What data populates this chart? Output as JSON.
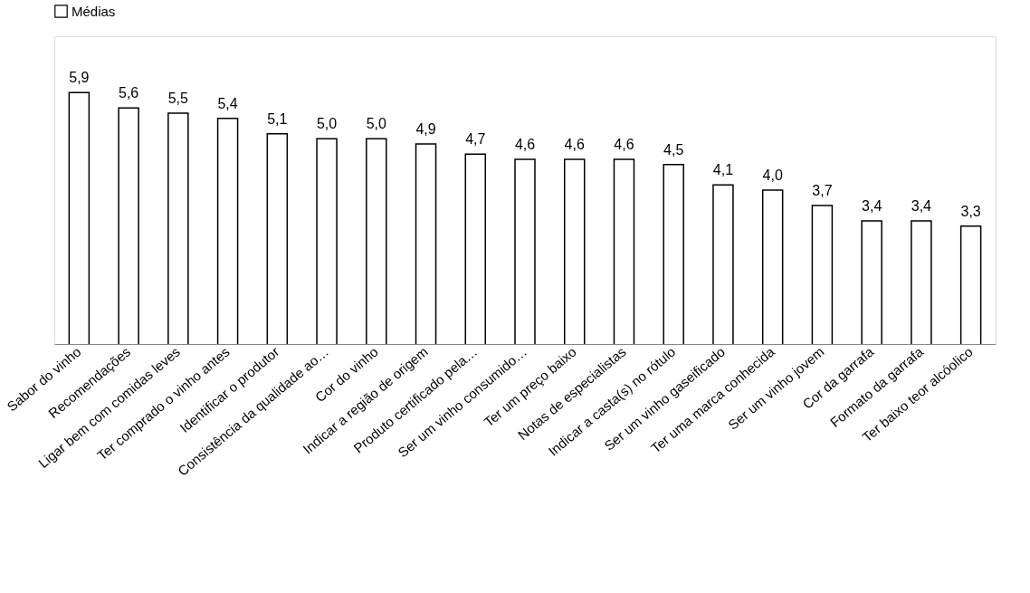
{
  "chart_data": {
    "type": "bar",
    "legend": "top",
    "categories": [
      "Sabor do vinho",
      "Recomendações",
      "Ligar bem com comidas leves",
      "Ter comprado o vinho antes",
      "Identificar o produtor",
      "Consistência da qualidade ao…",
      "Cor do vinho",
      "Indicar a região de origem",
      "Produto certificado pela…",
      "Ser um vinho consumido…",
      "Ter um preço baixo",
      "Notas de especialistas",
      "Indicar a casta(s) no rótulo",
      "Ser um vinho gaseificado",
      "Ter uma marca conhecida",
      "Ser um vinho jovem",
      "Cor da garrafa",
      "Formato da garrafa",
      "Ter baixo teor alcóolico"
    ],
    "series": [
      {
        "name": "Médias",
        "color": "#ffffff",
        "values": [
          5.9,
          5.6,
          5.5,
          5.4,
          5.1,
          5.0,
          5.0,
          4.9,
          4.7,
          4.6,
          4.6,
          4.6,
          4.5,
          4.1,
          4.0,
          3.7,
          3.4,
          3.4,
          3.3
        ],
        "value_labels": [
          "5,9",
          "5,6",
          "5,5",
          "5,4",
          "5,1",
          "5,0",
          "5,0",
          "4,9",
          "4,7",
          "4,6",
          "4,6",
          "4,6",
          "4,5",
          "4,1",
          "4,0",
          "3,7",
          "3,4",
          "3,4",
          "3,3"
        ]
      }
    ],
    "ylim": [
      1,
      7
    ],
    "grid": false
  }
}
